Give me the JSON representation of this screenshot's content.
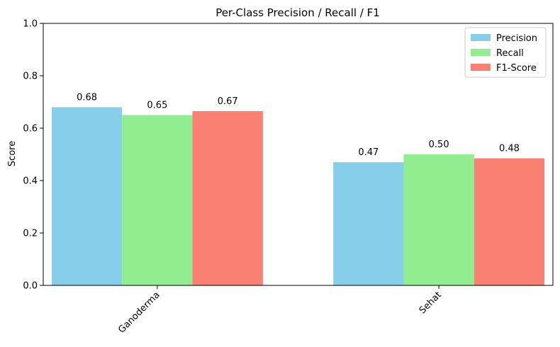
{
  "chart_data": {
    "type": "bar",
    "title": "Per-Class Precision / Recall / F1",
    "xlabel": "",
    "ylabel": "Score",
    "ylim": [
      0,
      1.0
    ],
    "yticks": [
      0.0,
      0.2,
      0.4,
      0.6,
      0.8,
      1.0
    ],
    "ytick_labels": [
      "0.0",
      "0.2",
      "0.4",
      "0.6",
      "0.8",
      "1.0"
    ],
    "categories": [
      "Ganoderma",
      "Sehat"
    ],
    "series": [
      {
        "name": "Precision",
        "color": "#87ceeb",
        "values": [
          0.68,
          0.47
        ],
        "labels": [
          "0.68",
          "0.47"
        ]
      },
      {
        "name": "Recall",
        "color": "#90ee90",
        "values": [
          0.65,
          0.5
        ],
        "labels": [
          "0.65",
          "0.50"
        ]
      },
      {
        "name": "F1-Score",
        "color": "#fa8072",
        "values": [
          0.665,
          0.485
        ],
        "labels": [
          "0.67",
          "0.48"
        ]
      }
    ],
    "legend_position": "top-right",
    "grid": false,
    "xtick_rotation": "45"
  }
}
